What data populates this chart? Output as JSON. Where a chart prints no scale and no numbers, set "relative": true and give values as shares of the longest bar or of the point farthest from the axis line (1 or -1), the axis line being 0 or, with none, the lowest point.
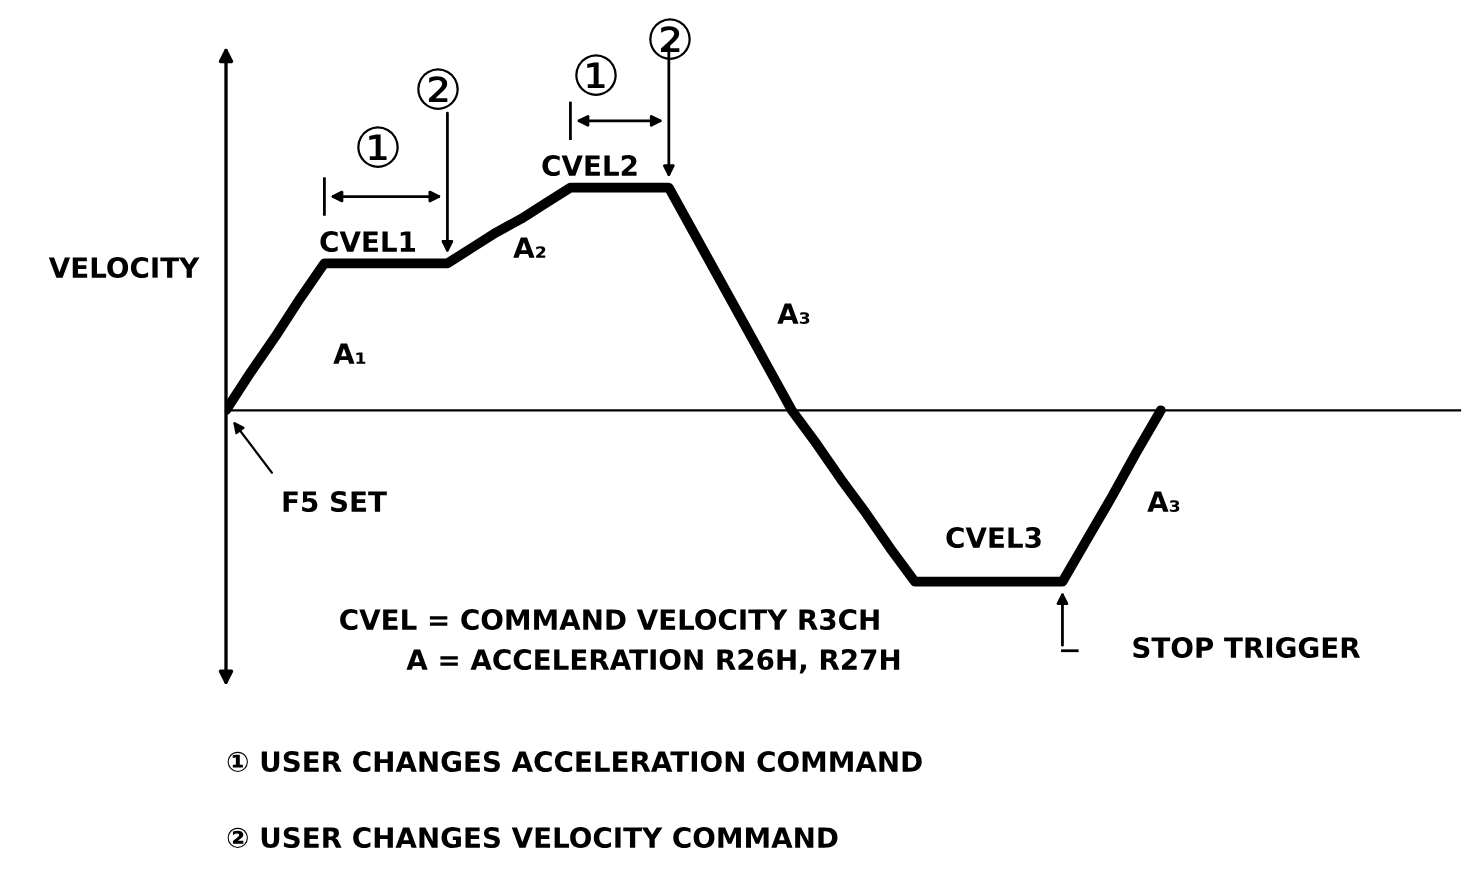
{
  "chart_data": {
    "type": "line",
    "relative": true,
    "ylabel": "VELOCITY",
    "categories": [
      null,
      null,
      null,
      null,
      null,
      null,
      null,
      null,
      null,
      null,
      null,
      null,
      null,
      null,
      null,
      null,
      null,
      null,
      null,
      null,
      null,
      null,
      null,
      null,
      null,
      null,
      null,
      null,
      null,
      null,
      null,
      null,
      null,
      null,
      null,
      null,
      null,
      null,
      null
    ],
    "series": [
      {
        "color": "#000000",
        "values": [
          0,
          0.17,
          0.33,
          0.5,
          0.66,
          0.66,
          0.66,
          0.66,
          0.66,
          0.66,
          0.73,
          0.8,
          0.86,
          0.93,
          1,
          1,
          1,
          1,
          1,
          0.8,
          0.6,
          0.4,
          0.2,
          0,
          -0.15,
          -0.31,
          -0.46,
          -0.62,
          -0.77,
          -0.77,
          -0.77,
          -0.77,
          -0.77,
          -0.77,
          -0.77,
          -0.58,
          -0.39,
          -0.19,
          0
        ]
      }
    ],
    "annotations": [
      "A₁",
      "CVEL1",
      "A₂",
      "CVEL2",
      "A₃",
      "CVEL3",
      "A₃",
      "F5 SET",
      "STOP TRIGGER",
      "①",
      "②",
      "①",
      "②",
      "CVEL = COMMAND VELOCITY R3CH",
      "A = ACCELERATION R26H, R27H",
      "① USER CHANGES ACCELERATION COMMAND",
      "② USER CHANGES VELOCITY COMMAND"
    ]
  }
}
